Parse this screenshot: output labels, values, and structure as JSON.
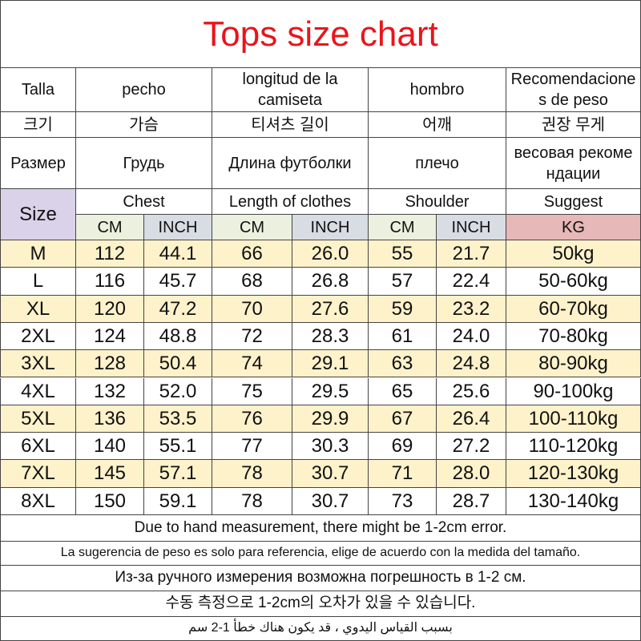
{
  "title": "Tops size chart",
  "header": {
    "languages": [
      [
        "Talla",
        "pecho",
        "longitud de la camiseta",
        "hombro",
        "Recomendaciones de peso"
      ],
      [
        "크기",
        "가슴",
        "티셔츠 길이",
        "어깨",
        "권장 무게"
      ],
      [
        "Размер",
        "Грудь",
        "Длина футболки",
        "плечо",
        "весовая рекомендации"
      ]
    ],
    "size_label": "Size",
    "groups": [
      "Chest",
      "Length of clothes",
      "Shoulder",
      "Suggest"
    ],
    "units": [
      "CM",
      "INCH",
      "CM",
      "INCH",
      "CM",
      "INCH",
      "KG"
    ]
  },
  "rows": [
    [
      "M",
      "112",
      "44.1",
      "66",
      "26.0",
      "55",
      "21.7",
      "50kg"
    ],
    [
      "L",
      "116",
      "45.7",
      "68",
      "26.8",
      "57",
      "22.4",
      "50-60kg"
    ],
    [
      "XL",
      "120",
      "47.2",
      "70",
      "27.6",
      "59",
      "23.2",
      "60-70kg"
    ],
    [
      "2XL",
      "124",
      "48.8",
      "72",
      "28.3",
      "61",
      "24.0",
      "70-80kg"
    ],
    [
      "3XL",
      "128",
      "50.4",
      "74",
      "29.1",
      "63",
      "24.8",
      "80-90kg"
    ],
    [
      "4XL",
      "132",
      "52.0",
      "75",
      "29.5",
      "65",
      "25.6",
      "90-100kg"
    ],
    [
      "5XL",
      "136",
      "53.5",
      "76",
      "29.9",
      "67",
      "26.4",
      "100-110kg"
    ],
    [
      "6XL",
      "140",
      "55.1",
      "77",
      "30.3",
      "69",
      "27.2",
      "110-120kg"
    ],
    [
      "7XL",
      "145",
      "57.1",
      "78",
      "30.7",
      "71",
      "28.0",
      "120-130kg"
    ],
    [
      "8XL",
      "150",
      "59.1",
      "78",
      "30.7",
      "73",
      "28.7",
      "130-140kg"
    ]
  ],
  "notes": [
    "Due to hand measurement, there might be 1-2cm error.",
    "La sugerencia de peso es solo para referencia, elige de acuerdo con la medida del tamaño.",
    "Из-за ручного измерения возможна погрешность в 1-2 см.",
    "수동 측정으로 1-2cm의 오차가 있을 수 있습니다.",
    "بسبب القياس اليدوي ، قد يكون هناك خطأ 1-2 سم"
  ]
}
